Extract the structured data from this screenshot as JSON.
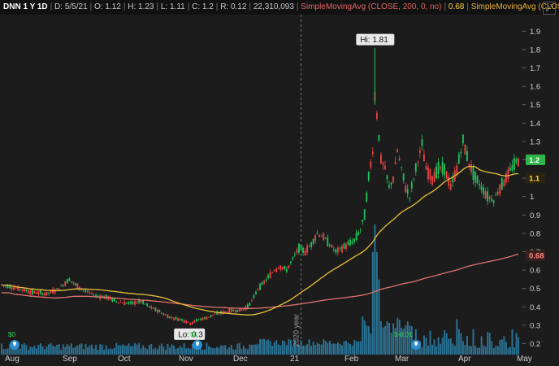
{
  "header": {
    "symbol": "DNN 1 Y 1D",
    "date": "D: 5/5/21",
    "open": "O: 1.12",
    "high": "H: 1.23",
    "low": "L: 1.11",
    "close": "C: 1.2",
    "range": "R: 0.12",
    "volume": "22,310,093",
    "sma200_label": "SimpleMovingAvg (CLOSE, 200, 0, no)",
    "sma200_value": "0.68",
    "sma50_label": "SimpleMovingAvg (CLOSE,..."
  },
  "colors": {
    "background": "#1c1c1c",
    "up": "#22c55e",
    "down": "#ef4444",
    "volume": "#2e7ea5",
    "sma200": "#e0736b",
    "sma50": "#e8c03a",
    "price_badge": "#2fb34b"
  },
  "icons": {
    "expand": "expand-icon",
    "earnings": "earnings-bulb-icon"
  },
  "chart_data": {
    "type": "candlestick",
    "x_labels": [
      "Aug",
      "Sep",
      "Oct",
      "Nov",
      "Dec",
      "21",
      "Feb",
      "Mar",
      "Apr",
      "May"
    ],
    "y_ticks": [
      "1.9",
      "1.8",
      "1.7",
      "1.6",
      "1.5",
      "1.4",
      "1.3",
      "1.2",
      "1.1",
      "1",
      "0.9",
      "0.8",
      "0.7",
      "0.6",
      "0.5",
      "0.4",
      "0.3",
      "0.2"
    ],
    "ylim": [
      0.14,
      1.99
    ],
    "annotations": {
      "hi": "Hi: 1.81",
      "lo": "Lo: 0.3",
      "year_marker": "2020 year"
    },
    "dividends": {
      "aug": "$0",
      "nov": "$0",
      "feb": "$-0.01"
    },
    "price_tags": {
      "last": "1.2",
      "sma50": "1.1",
      "sma200": "0.68"
    },
    "close_path": [
      [
        0,
        0.52
      ],
      [
        8,
        0.5
      ],
      [
        15,
        0.48
      ],
      [
        22,
        0.47
      ],
      [
        28,
        0.5
      ],
      [
        33,
        0.55
      ],
      [
        36,
        0.52
      ],
      [
        40,
        0.49
      ],
      [
        46,
        0.46
      ],
      [
        52,
        0.45
      ],
      [
        56,
        0.43
      ],
      [
        60,
        0.42
      ],
      [
        64,
        0.42
      ],
      [
        68,
        0.43
      ],
      [
        72,
        0.4
      ],
      [
        76,
        0.38
      ],
      [
        79,
        0.36
      ],
      [
        83,
        0.34
      ],
      [
        88,
        0.33
      ],
      [
        92,
        0.31
      ],
      [
        96,
        0.33
      ],
      [
        100,
        0.34
      ],
      [
        104,
        0.36
      ],
      [
        108,
        0.37
      ],
      [
        112,
        0.38
      ],
      [
        116,
        0.38
      ],
      [
        120,
        0.4
      ],
      [
        123,
        0.45
      ],
      [
        125,
        0.5
      ],
      [
        127,
        0.52
      ],
      [
        130,
        0.56
      ],
      [
        133,
        0.6
      ],
      [
        136,
        0.62
      ],
      [
        139,
        0.6
      ],
      [
        142,
        0.66
      ],
      [
        145,
        0.72
      ],
      [
        148,
        0.7
      ],
      [
        151,
        0.74
      ],
      [
        154,
        0.8
      ],
      [
        157,
        0.78
      ],
      [
        160,
        0.74
      ],
      [
        163,
        0.7
      ],
      [
        166,
        0.72
      ],
      [
        169,
        0.74
      ],
      [
        172,
        0.76
      ],
      [
        175,
        0.82
      ],
      [
        177,
        0.9
      ],
      [
        179,
        1.1
      ],
      [
        181,
        1.25
      ],
      [
        182,
        1.55
      ],
      [
        183,
        1.45
      ],
      [
        185,
        1.2
      ],
      [
        187,
        1.15
      ],
      [
        189,
        1.05
      ],
      [
        191,
        1.1
      ],
      [
        193,
        1.25
      ],
      [
        195,
        1.15
      ],
      [
        197,
        1.05
      ],
      [
        199,
        1.0
      ],
      [
        201,
        1.1
      ],
      [
        203,
        1.2
      ],
      [
        205,
        1.28
      ],
      [
        207,
        1.15
      ],
      [
        210,
        1.1
      ],
      [
        213,
        1.15
      ],
      [
        216,
        1.15
      ],
      [
        219,
        1.05
      ],
      [
        222,
        1.15
      ],
      [
        225,
        1.3
      ],
      [
        228,
        1.18
      ],
      [
        231,
        1.1
      ],
      [
        234,
        1.05
      ],
      [
        237,
        1.0
      ],
      [
        240,
        0.98
      ],
      [
        243,
        1.05
      ],
      [
        246,
        1.1
      ],
      [
        249,
        1.16
      ],
      [
        252,
        1.2
      ]
    ],
    "close_ylim": [
      0.3,
      1.81
    ],
    "volume_peak_index": 182
  }
}
